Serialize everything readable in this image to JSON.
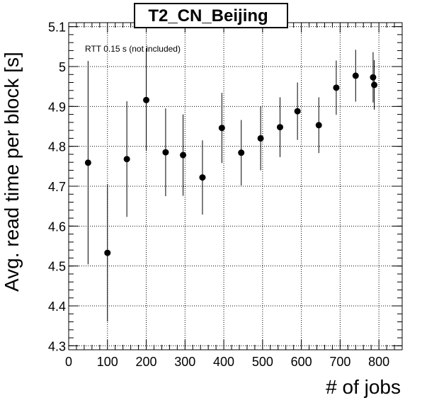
{
  "chart_data": {
    "type": "scatter",
    "title": "T2_CN_Beijing",
    "xlabel": "# of jobs",
    "ylabel": "Avg. read time per block [s]",
    "annotation": "RTT 0.15 s (not included)",
    "xlim": [
      0,
      860
    ],
    "ylim": [
      4.29,
      5.11
    ],
    "x_ticks": [
      "0",
      "100",
      "200",
      "300",
      "400",
      "500",
      "600",
      "700",
      "800"
    ],
    "y_ticks": [
      "4.3",
      "4.4",
      "4.5",
      "4.6",
      "4.7",
      "4.8",
      "4.9",
      "5",
      "5.1"
    ],
    "grid": true,
    "series": [
      {
        "points": [
          {
            "x": 50,
            "y": 4.759,
            "err": 0.255
          },
          {
            "x": 100,
            "y": 4.533,
            "err": 0.172
          },
          {
            "x": 150,
            "y": 4.768,
            "err": 0.145
          },
          {
            "x": 200,
            "y": 4.916,
            "err": 0.128
          },
          {
            "x": 250,
            "y": 4.785,
            "err": 0.11
          },
          {
            "x": 295,
            "y": 4.778,
            "err": 0.102
          },
          {
            "x": 345,
            "y": 4.722,
            "err": 0.093
          },
          {
            "x": 395,
            "y": 4.846,
            "err": 0.088
          },
          {
            "x": 445,
            "y": 4.784,
            "err": 0.082
          },
          {
            "x": 495,
            "y": 4.82,
            "err": 0.08
          },
          {
            "x": 545,
            "y": 4.848,
            "err": 0.075
          },
          {
            "x": 590,
            "y": 4.888,
            "err": 0.072
          },
          {
            "x": 645,
            "y": 4.853,
            "err": 0.07
          },
          {
            "x": 690,
            "y": 4.947,
            "err": 0.068
          },
          {
            "x": 740,
            "y": 4.977,
            "err": 0.065
          },
          {
            "x": 785,
            "y": 4.973,
            "err": 0.063
          },
          {
            "x": 788,
            "y": 4.954,
            "err": 0.062
          }
        ]
      }
    ]
  }
}
